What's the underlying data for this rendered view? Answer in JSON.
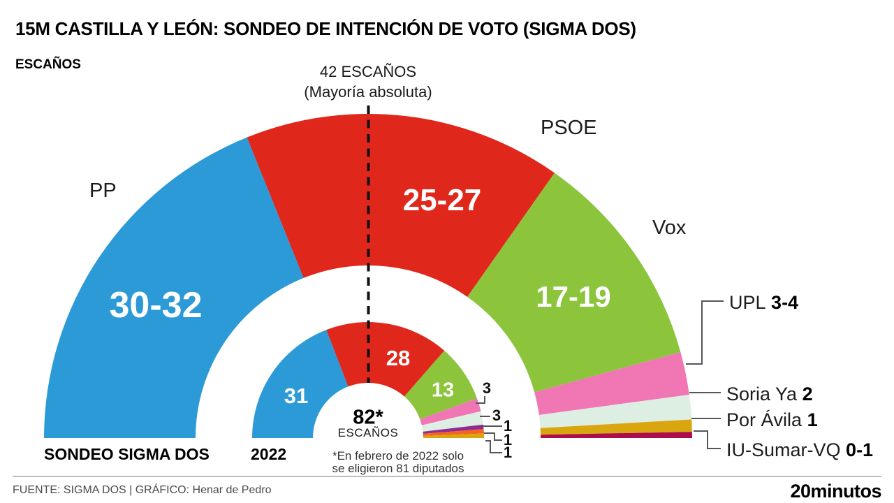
{
  "header": {
    "title": "15M CASTILLA Y LEÓN: SONDEO DE INTENCIÓN DE VOTO (SIGMA DOS)",
    "unit_label": "ESCAÑOS"
  },
  "chart_data": {
    "type": "half-donut-parliament",
    "title": "15M CASTILLA Y LEÓN: SONDEO DE INTENCIÓN DE VOTO (SIGMA DOS)",
    "units": "ESCAÑOS",
    "majority_marker": {
      "seats": 42,
      "label": "42 ESCAÑOS",
      "sublabel": "(Mayoría absoluta)"
    },
    "center_total": {
      "value": "82*",
      "unit": "ESCAÑOS"
    },
    "footnote": {
      "line1": "*En febrero de 2022 solo",
      "line2": "se eligieron 81 diputados"
    },
    "rings": [
      {
        "name": "SONDEO SIGMA DOS",
        "total_seats": 82,
        "segments": [
          {
            "party": "PP",
            "label": "30-32",
            "seats": 31,
            "color": "#2B9AD6"
          },
          {
            "party": "PSOE",
            "label": "25-27",
            "seats": 26,
            "color": "#E0271C"
          },
          {
            "party": "Vox",
            "label": "17-19",
            "seats": 18,
            "color": "#8CC43C"
          },
          {
            "party": "UPL",
            "label": "3-4",
            "seats": 3.5,
            "color": "#F176B4"
          },
          {
            "party": "Soria Ya",
            "label": "2",
            "seats": 2,
            "color": "#DDEEE2"
          },
          {
            "party": "Por Ávila",
            "label": "1",
            "seats": 1,
            "color": "#DAA60F"
          },
          {
            "party": "IU-Sumar-VQ",
            "label": "0-1",
            "seats": 0.5,
            "color": "#AC0E4D"
          }
        ]
      },
      {
        "name": "2022",
        "total_seats": 81,
        "segments": [
          {
            "label": "31",
            "seats": 31,
            "color": "#2B9AD6"
          },
          {
            "label": "28",
            "seats": 28,
            "color": "#E0271C"
          },
          {
            "label": "13",
            "seats": 13,
            "color": "#8CC43C"
          },
          {
            "label": "3",
            "seats": 3,
            "color": "#F176B4"
          },
          {
            "label": "3",
            "seats": 3,
            "color": "#DDEEE2"
          },
          {
            "label": "1",
            "seats": 1,
            "color": "#922B90"
          },
          {
            "label": "1",
            "seats": 1,
            "color": "#F4641E"
          },
          {
            "label": "1",
            "seats": 1,
            "color": "#DAA60F"
          }
        ]
      }
    ]
  },
  "footer": {
    "source": "FUENTE: SIGMA DOS  |  GRÁFICO: Henar de Pedro",
    "logo": "20minutos"
  }
}
